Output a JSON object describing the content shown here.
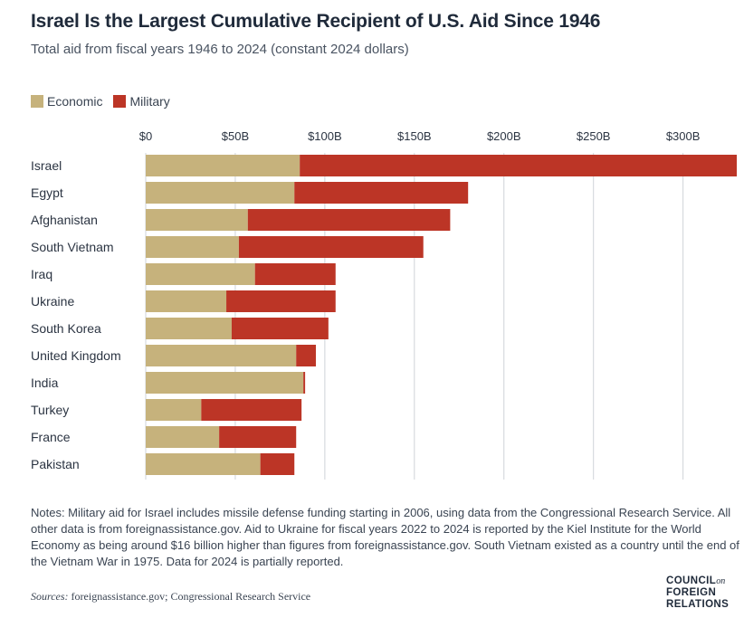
{
  "header": {
    "title": "Israel Is the Largest Cumulative Recipient of U.S. Aid Since 1946",
    "subtitle": "Total aid from fiscal years 1946 to 2024 (constant 2024 dollars)"
  },
  "legend": {
    "economic_label": "Economic",
    "military_label": "Military"
  },
  "colors": {
    "economic": "#c6b27c",
    "military": "#bc3526",
    "gridline": "#cfd3d8"
  },
  "chart_data": {
    "type": "bar",
    "orientation": "horizontal",
    "stacked": true,
    "title": "Israel Is the Largest Cumulative Recipient of U.S. Aid Since 1946",
    "subtitle": "Total aid from fiscal years 1946 to 2024 (constant 2024 dollars)",
    "xlabel": "",
    "ylabel": "",
    "xlim": [
      0,
      330
    ],
    "xticks": [
      0,
      50,
      100,
      150,
      200,
      250,
      300
    ],
    "xtick_labels": [
      "$0",
      "$50B",
      "$100B",
      "$150B",
      "$200B",
      "$250B",
      "$300B"
    ],
    "grid": true,
    "legend_position": "top-left",
    "categories": [
      "Israel",
      "Egypt",
      "Afghanistan",
      "South Vietnam",
      "Iraq",
      "Ukraine",
      "South Korea",
      "United Kingdom",
      "India",
      "Turkey",
      "France",
      "Pakistan"
    ],
    "series": [
      {
        "name": "Economic",
        "values": [
          86,
          83,
          57,
          52,
          61,
          45,
          48,
          84,
          88,
          31,
          41,
          64
        ]
      },
      {
        "name": "Military",
        "values": [
          244,
          97,
          113,
          103,
          45,
          61,
          54,
          11,
          1,
          56,
          43,
          19
        ]
      }
    ]
  },
  "notes": "Notes: Military aid for Israel includes missile defense funding starting in 2006, using data from the Congressional Research Service. All other data is from foreignassistance.gov. Aid to Ukraine for fiscal years 2022 to 2024 is reported by the Kiel Institute for the World Economy as being around $16 billion higher than figures from foreignassistance.gov. South Vietnam existed as a country until the end of the Vietnam War in 1975. Data for 2024 is partially reported.",
  "sources": {
    "label": "Sources:",
    "text": "foreignassistance.gov; Congressional Research Service"
  },
  "logo": {
    "line1": "COUNCIL",
    "on": "on",
    "line2": "FOREIGN",
    "line3": "RELATIONS"
  }
}
